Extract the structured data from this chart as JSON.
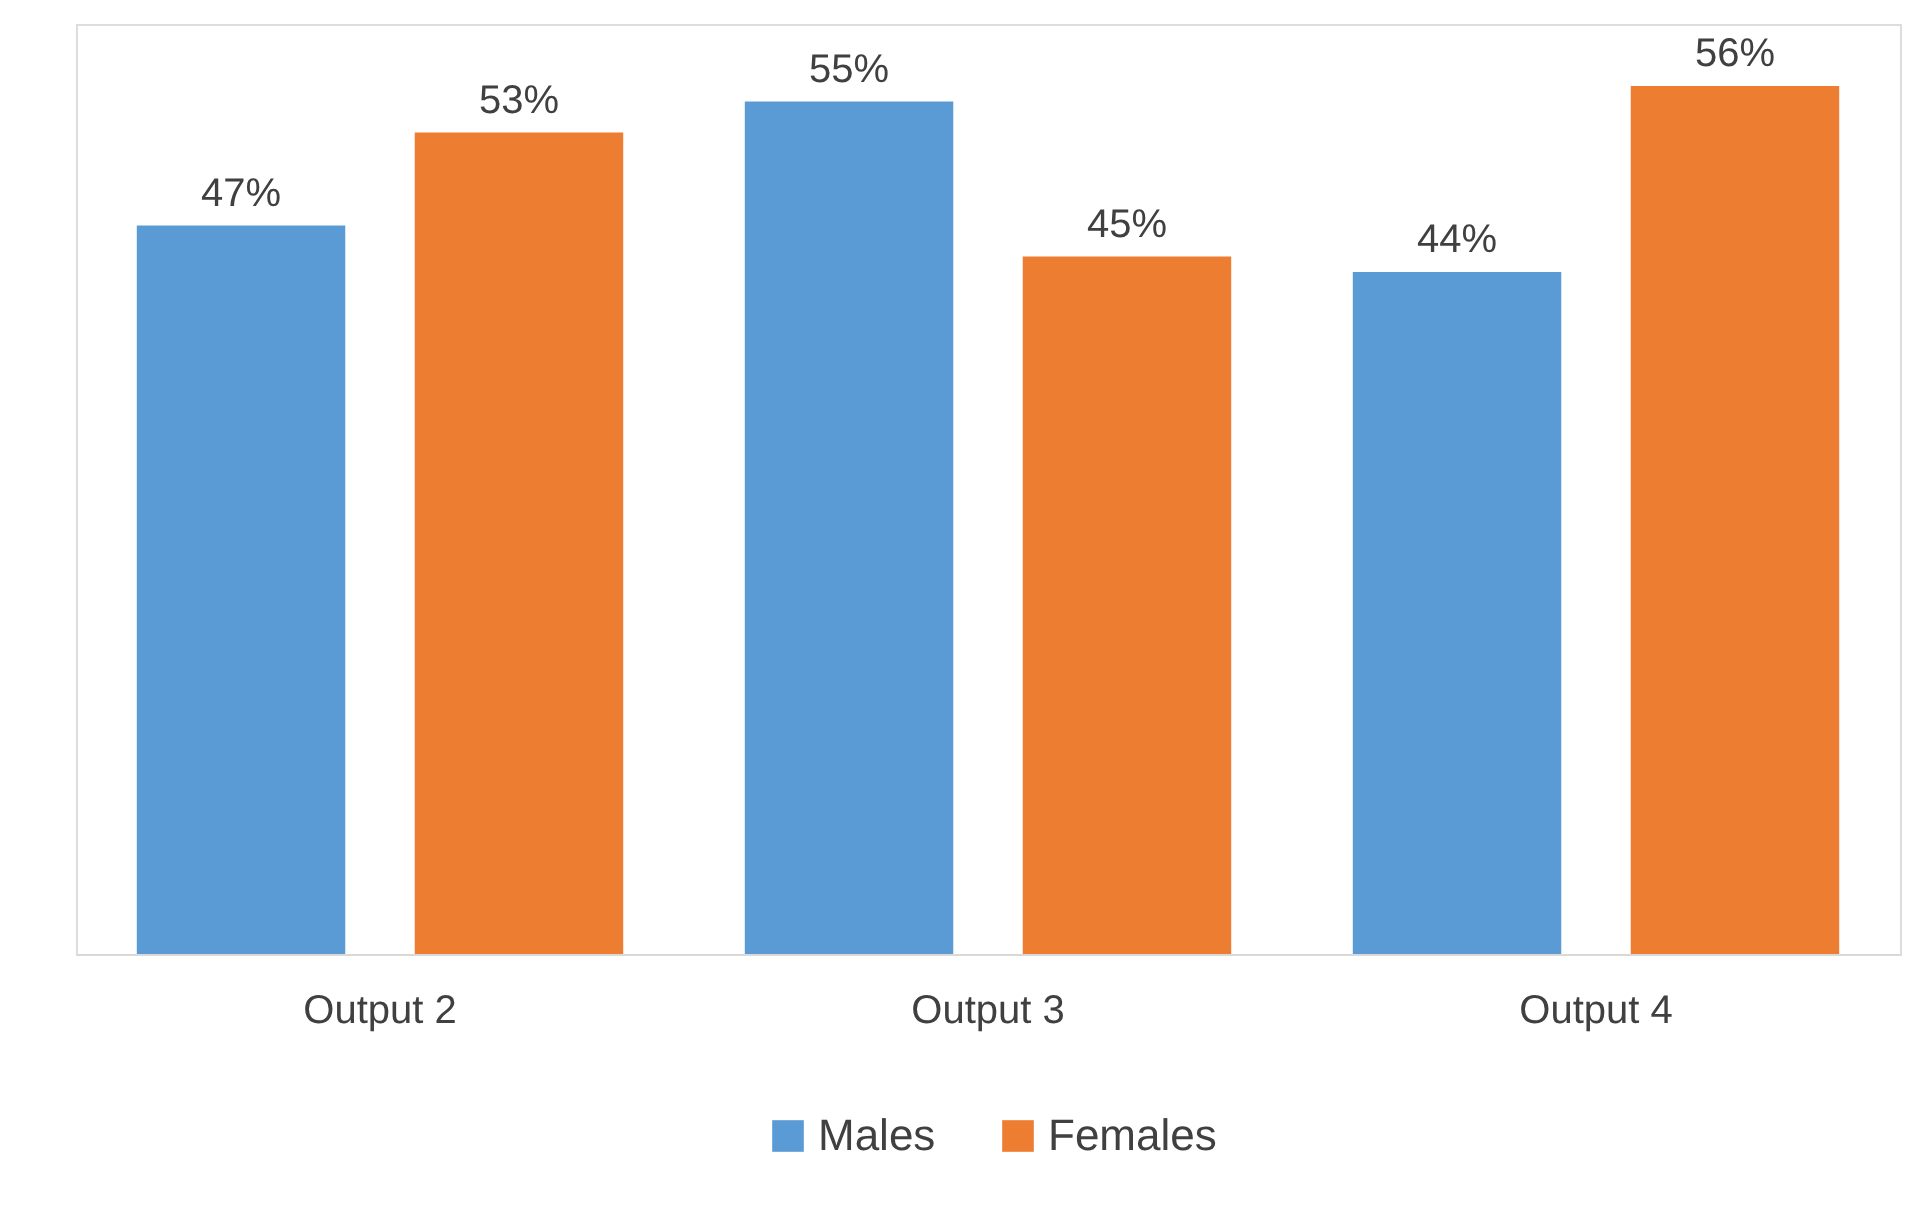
{
  "chart_data": {
    "type": "bar",
    "categories": [
      "Output 2",
      "Output 3",
      "Output 4"
    ],
    "series": [
      {
        "name": "Males",
        "color": "#5b9bd5",
        "values": [
          47,
          55,
          44
        ],
        "value_labels": [
          "47%",
          "55%",
          "44%"
        ]
      },
      {
        "name": "Females",
        "color": "#ed7d31",
        "values": [
          53,
          45,
          56
        ],
        "value_labels": [
          "53%",
          "45%",
          "56%"
        ]
      }
    ],
    "legend": "bottom",
    "grid": false,
    "tick_labels": "x"
  }
}
